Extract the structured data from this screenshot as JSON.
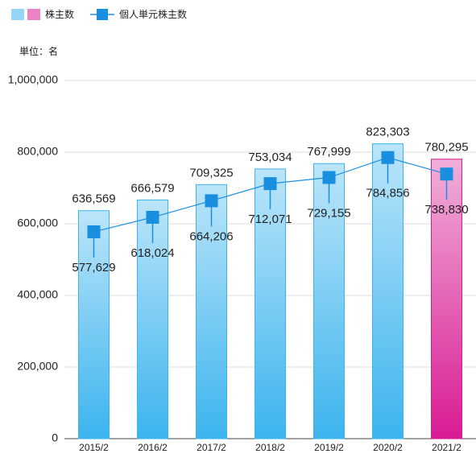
{
  "chart_data": {
    "type": "bar-line",
    "unit_label": "単位：名",
    "categories": [
      "2015/2",
      "2016/2",
      "2017/2",
      "2018/2",
      "2019/2",
      "2020/2",
      "2021/2"
    ],
    "series": [
      {
        "name": "株主数",
        "type": "bar",
        "colors": [
          "#3cb4ee",
          "#3cb4ee",
          "#3cb4ee",
          "#3cb4ee",
          "#3cb4ee",
          "#3cb4ee",
          "#d81b93"
        ],
        "values": [
          636569,
          666579,
          709325,
          753034,
          767999,
          823303,
          780295
        ],
        "value_labels": [
          "636,569",
          "666,579",
          "709,325",
          "753,034",
          "767,999",
          "823,303",
          "780,295"
        ]
      },
      {
        "name": "個人単元株主数",
        "type": "line",
        "color": "#1a8fe0",
        "values": [
          577629,
          618024,
          664206,
          712071,
          729155,
          784856,
          738830
        ],
        "value_labels": [
          "577,629",
          "618,024",
          "664,206",
          "712,071",
          "729,155",
          "784,856",
          "738,830"
        ]
      }
    ],
    "ylim": [
      0,
      1000000
    ],
    "yticks": [
      0,
      {
        "value": 200000,
        "label": "200,000"
      },
      {
        "value": 400000,
        "label": "400,000"
      },
      {
        "value": 600000,
        "label": "600,000"
      },
      {
        "value": 800000,
        "label": "800,000"
      },
      {
        "value": 1000000,
        "label": "1,000,000"
      }
    ],
    "grid": true
  }
}
